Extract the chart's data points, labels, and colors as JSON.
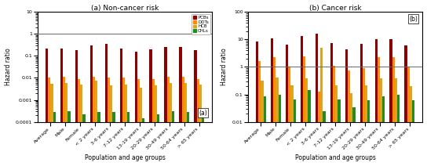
{
  "categories": [
    "Average",
    "Male",
    "Female",
    "< 2 years",
    "3-6 years",
    "7-12 years",
    "13-19 years",
    "20-29 years",
    "30-49 years",
    "50-64 years",
    "> 65 years"
  ],
  "non_cancer": {
    "PCBs": [
      0.22,
      0.22,
      0.18,
      0.3,
      0.35,
      0.22,
      0.15,
      0.2,
      0.25,
      0.25,
      0.18
    ],
    "DDTs": [
      0.01,
      0.011,
      0.0085,
      0.011,
      0.01,
      0.01,
      0.0085,
      0.009,
      0.011,
      0.011,
      0.009
    ],
    "HCB": [
      0.0055,
      0.006,
      0.005,
      0.0075,
      0.0045,
      0.005,
      0.0035,
      0.0045,
      0.006,
      0.006,
      0.005
    ],
    "CHLs": [
      0.00028,
      0.0003,
      0.00022,
      0.00028,
      0.00028,
      0.00028,
      0.00015,
      0.00022,
      0.0003,
      0.00028,
      0.00022
    ]
  },
  "cancer": {
    "PCBs": [
      8.5,
      11.0,
      6.5,
      13.0,
      16.0,
      7.5,
      4.5,
      7.0,
      10.0,
      10.5,
      6.0
    ],
    "DDTs": [
      1.6,
      2.3,
      1.0,
      2.5,
      0.13,
      1.1,
      0.75,
      0.9,
      2.2,
      2.3,
      1.0
    ],
    "HCB": [
      0.32,
      0.42,
      0.22,
      0.38,
      5.0,
      0.22,
      0.11,
      0.22,
      0.38,
      0.38,
      0.2
    ],
    "CHLs": [
      0.085,
      0.1,
      0.065,
      0.14,
      0.025,
      0.065,
      0.035,
      0.06,
      0.085,
      0.095,
      0.06
    ]
  },
  "colors": {
    "PCBs": "#8B0000",
    "DDTs": "#FF8C00",
    "HCB": "#DAA520",
    "CHLs": "#228B22"
  },
  "title_a": "(a) Non-cancer risk",
  "title_b": "(b) Cancer risk",
  "ylabel": "Hazard ratio",
  "xlabel": "Population and age groups",
  "label_a": "(a)",
  "label_b": "(b)",
  "ylim_a": [
    0.0001,
    10
  ],
  "ylim_b": [
    0.01,
    100
  ],
  "yticks_a": [
    0.0001,
    0.001,
    0.01,
    0.1,
    1,
    10
  ],
  "yticks_b": [
    0.01,
    0.1,
    1,
    10,
    100
  ],
  "ytick_labels_a": [
    "0.0001",
    "0.001",
    "0.01",
    "0.1",
    "1",
    "10"
  ],
  "ytick_labels_b": [
    "0.01",
    "0.1",
    "1",
    "10",
    "100"
  ],
  "hline_a": 1.0,
  "hline_b": 1.0
}
